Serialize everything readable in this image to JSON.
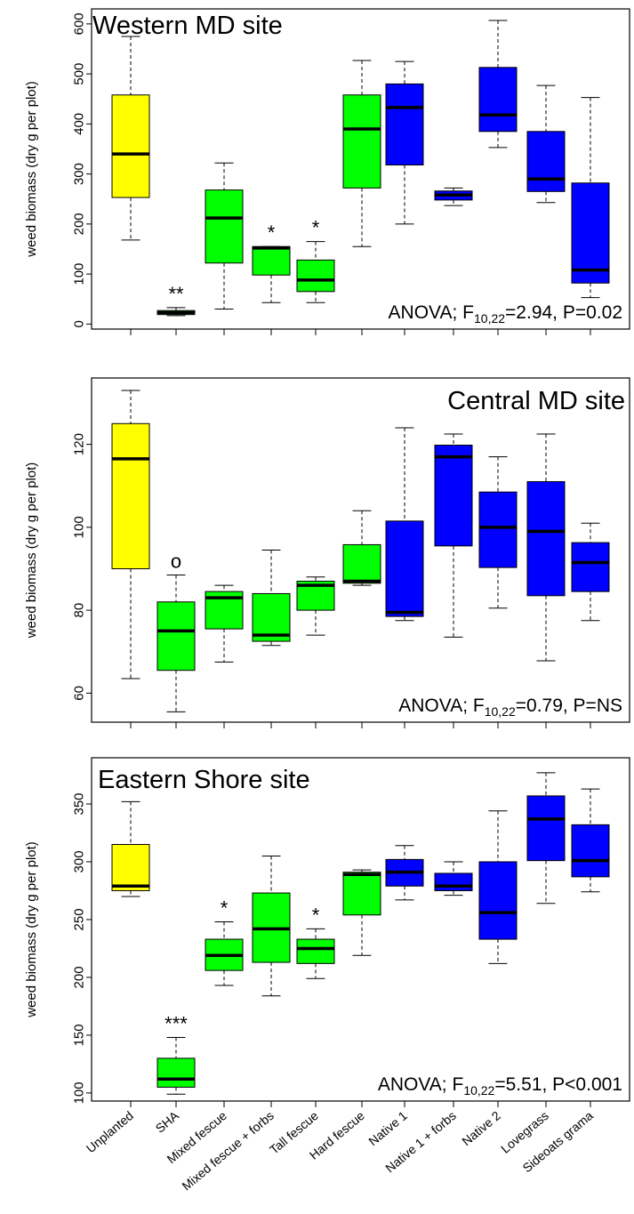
{
  "chart_data": [
    {
      "type": "box",
      "title": "Western MD site",
      "ylabel": "weed biomass (dry g per plot)",
      "ylim": [
        -10,
        630
      ],
      "yticks": [
        0,
        100,
        200,
        300,
        400,
        500,
        600
      ],
      "annotation": {
        "prefix": "ANOVA; F",
        "sub": "10,22",
        "suffix": "=2.94, P=0.02"
      },
      "boxes": [
        {
          "category": "Unplanted",
          "group": "control",
          "min": 168,
          "q1": 253,
          "median": 340,
          "q3": 458,
          "max": 575,
          "sig": ""
        },
        {
          "category": "SHA",
          "group": "fescue",
          "min": 17,
          "q1": 19,
          "median": 23,
          "q3": 27,
          "max": 33,
          "sig": "**"
        },
        {
          "category": "Mixed fescue",
          "group": "fescue",
          "min": 30,
          "q1": 122,
          "median": 212,
          "q3": 268,
          "max": 322,
          "sig": ""
        },
        {
          "category": "Mixed fescue + forbs",
          "group": "fescue",
          "min": 43,
          "q1": 98,
          "median": 152,
          "q3": 155,
          "max": 155,
          "sig": "*"
        },
        {
          "category": "Tall fescue",
          "group": "fescue",
          "min": 43,
          "q1": 65,
          "median": 88,
          "q3": 128,
          "max": 165,
          "sig": "*"
        },
        {
          "category": "Hard fescue",
          "group": "fescue",
          "min": 155,
          "q1": 272,
          "median": 390,
          "q3": 458,
          "max": 527,
          "sig": ""
        },
        {
          "category": "Native 1",
          "group": "native",
          "min": 200,
          "q1": 318,
          "median": 433,
          "q3": 480,
          "max": 525,
          "sig": ""
        },
        {
          "category": "Native 1 + forbs",
          "group": "native",
          "min": 237,
          "q1": 248,
          "median": 258,
          "q3": 266,
          "max": 272,
          "sig": ""
        },
        {
          "category": "Native 2",
          "group": "native",
          "min": 353,
          "q1": 385,
          "median": 418,
          "q3": 513,
          "max": 607,
          "sig": ""
        },
        {
          "category": "Lovegrass",
          "group": "native",
          "min": 243,
          "q1": 265,
          "median": 290,
          "q3": 385,
          "max": 477,
          "sig": ""
        },
        {
          "category": "Sideoats grama",
          "group": "native",
          "min": 53,
          "q1": 82,
          "median": 108,
          "q3": 282,
          "max": 453,
          "sig": ""
        }
      ]
    },
    {
      "type": "box",
      "title": "Central MD site",
      "ylabel": "weed biomass (dry g per plot)",
      "ylim": [
        53,
        136
      ],
      "yticks": [
        60,
        80,
        100,
        120
      ],
      "annotation": {
        "prefix": "ANOVA; F",
        "sub": "10,22",
        "suffix": "=0.79, P=NS"
      },
      "boxes": [
        {
          "category": "Unplanted",
          "group": "control",
          "min": 63.5,
          "q1": 90,
          "median": 116.5,
          "q3": 125,
          "max": 133,
          "sig": ""
        },
        {
          "category": "SHA",
          "group": "fescue",
          "min": 55.5,
          "q1": 65.5,
          "median": 75,
          "q3": 82,
          "max": 88.5,
          "sig": "o"
        },
        {
          "category": "Mixed fescue",
          "group": "fescue",
          "min": 67.5,
          "q1": 75.5,
          "median": 83,
          "q3": 84.5,
          "max": 86,
          "sig": ""
        },
        {
          "category": "Mixed fescue + forbs",
          "group": "fescue",
          "min": 71.5,
          "q1": 72.5,
          "median": 74,
          "q3": 84,
          "max": 94.5,
          "sig": ""
        },
        {
          "category": "Tall fescue",
          "group": "fescue",
          "min": 74,
          "q1": 80,
          "median": 86,
          "q3": 87,
          "max": 88,
          "sig": ""
        },
        {
          "category": "Hard fescue",
          "group": "fescue",
          "min": 86,
          "q1": 86.5,
          "median": 87,
          "q3": 95.8,
          "max": 104,
          "sig": ""
        },
        {
          "category": "Native 1",
          "group": "native",
          "min": 77.5,
          "q1": 78.5,
          "median": 79.5,
          "q3": 101.5,
          "max": 124,
          "sig": ""
        },
        {
          "category": "Native 1 + forbs",
          "group": "native",
          "min": 73.5,
          "q1": 95.5,
          "median": 117,
          "q3": 119.8,
          "max": 122.5,
          "sig": ""
        },
        {
          "category": "Native 2",
          "group": "native",
          "min": 80.5,
          "q1": 90.3,
          "median": 100,
          "q3": 108.5,
          "max": 117,
          "sig": ""
        },
        {
          "category": "Lovegrass",
          "group": "native",
          "min": 67.8,
          "q1": 83.5,
          "median": 99,
          "q3": 111,
          "max": 122.5,
          "sig": ""
        },
        {
          "category": "Sideoats grama",
          "group": "native",
          "min": 77.5,
          "q1": 84.5,
          "median": 91.5,
          "q3": 96.3,
          "max": 101,
          "sig": ""
        }
      ]
    },
    {
      "type": "box",
      "title": "Eastern Shore site",
      "ylabel": "weed biomass (dry g per plot)",
      "ylim": [
        93,
        390
      ],
      "yticks": [
        100,
        150,
        200,
        250,
        300,
        350
      ],
      "annotation": {
        "prefix": "ANOVA; F",
        "sub": "10,22",
        "suffix": "=5.51, P<0.001"
      },
      "boxes": [
        {
          "category": "Unplanted",
          "group": "control",
          "min": 270,
          "q1": 275,
          "median": 279,
          "q3": 315,
          "max": 352,
          "sig": ""
        },
        {
          "category": "SHA",
          "group": "fescue",
          "min": 99,
          "q1": 105,
          "median": 112,
          "q3": 130,
          "max": 148,
          "sig": "***"
        },
        {
          "category": "Mixed fescue",
          "group": "fescue",
          "min": 193,
          "q1": 206,
          "median": 219,
          "q3": 233,
          "max": 248,
          "sig": "*"
        },
        {
          "category": "Mixed fescue + forbs",
          "group": "fescue",
          "min": 184,
          "q1": 213,
          "median": 242,
          "q3": 273,
          "max": 305,
          "sig": ""
        },
        {
          "category": "Tall fescue",
          "group": "fescue",
          "min": 199,
          "q1": 212,
          "median": 225,
          "q3": 233,
          "max": 242,
          "sig": "*"
        },
        {
          "category": "Hard fescue",
          "group": "fescue",
          "min": 219,
          "q1": 254,
          "median": 289,
          "q3": 291,
          "max": 293,
          "sig": ""
        },
        {
          "category": "Native 1",
          "group": "native",
          "min": 267,
          "q1": 279,
          "median": 291,
          "q3": 302,
          "max": 314,
          "sig": ""
        },
        {
          "category": "Native 1 + forbs",
          "group": "native",
          "min": 271,
          "q1": 275,
          "median": 279,
          "q3": 290,
          "max": 300,
          "sig": ""
        },
        {
          "category": "Native 2",
          "group": "native",
          "min": 212,
          "q1": 233,
          "median": 256,
          "q3": 300,
          "max": 344,
          "sig": ""
        },
        {
          "category": "Lovegrass",
          "group": "native",
          "min": 264,
          "q1": 301,
          "median": 337,
          "q3": 357,
          "max": 377,
          "sig": ""
        },
        {
          "category": "Sideoats grama",
          "group": "native",
          "min": 274,
          "q1": 287,
          "median": 301,
          "q3": 332,
          "max": 363,
          "sig": ""
        }
      ]
    }
  ],
  "group_colors": {
    "control": "#ffff00",
    "fescue": "#00ff00",
    "native": "#0000ff"
  }
}
